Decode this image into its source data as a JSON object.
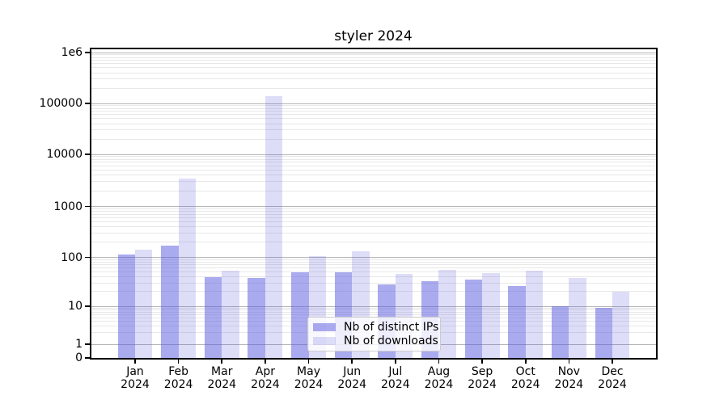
{
  "chart_data": {
    "type": "bar",
    "title": "styler 2024",
    "categories": [
      "Jan",
      "Feb",
      "Mar",
      "Apr",
      "May",
      "Jun",
      "Jul",
      "Aug",
      "Sep",
      "Oct",
      "Nov",
      "Dec"
    ],
    "x_tick_second_line": "2024",
    "series": [
      {
        "name": "Nb of distinct IPs",
        "color": "rgba(85,85,221,0.5)",
        "values": [
          115,
          170,
          39,
          38,
          50,
          49,
          28,
          32,
          35,
          26,
          10,
          9
        ]
      },
      {
        "name": "Nb of downloads",
        "color": "rgba(85,85,221,0.2)",
        "values": [
          140,
          3400,
          53,
          140000,
          104,
          133,
          46,
          56,
          48,
          53,
          38,
          20
        ]
      }
    ],
    "y_axis": {
      "scale": "symlog",
      "tick_values": [
        0,
        1,
        10,
        100,
        1000,
        10000,
        100000,
        1000000
      ],
      "tick_labels": [
        "0",
        "1",
        "10",
        "100",
        "1000",
        "10000",
        "100000",
        "1e6"
      ]
    },
    "ylim": [
      0,
      1160000
    ],
    "grid": {
      "major": true,
      "minor": true,
      "major_color": "#b5b5b5",
      "minor_color": "#e8e8e8"
    },
    "legend": {
      "position": "lower center"
    },
    "colors": {
      "bar_base": "#5555dd",
      "axis": "#000000",
      "background": "#ffffff"
    }
  }
}
